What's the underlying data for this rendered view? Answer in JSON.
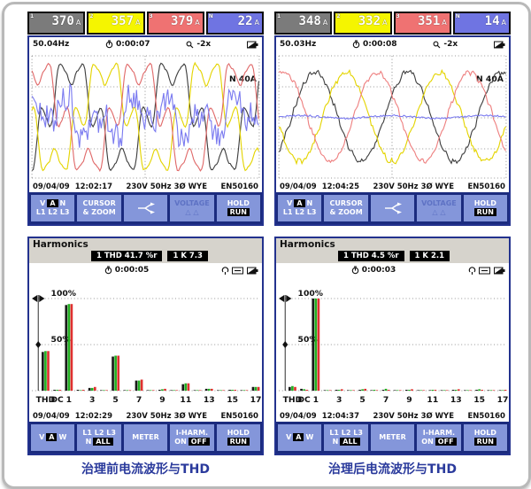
{
  "captions": {
    "left": "治理前电流波形与THD",
    "right": "治理后电流波形与THD"
  },
  "scope1": {
    "readings": [
      {
        "marker": "1",
        "value": "370",
        "unit": "A"
      },
      {
        "marker": "2",
        "value": "357",
        "unit": "A"
      },
      {
        "marker": "3",
        "value": "379",
        "unit": "A"
      },
      {
        "marker": "N",
        "value": "22",
        "unit": "A"
      }
    ],
    "freq": "50.04Hz",
    "elapsed": "0:00:07",
    "zoom": "-2x",
    "range_label": "N  40A",
    "date": "09/04/09",
    "time": "12:02:17",
    "volt_freq": "230V 50Hz 3Ø WYE",
    "standard": "EN50160"
  },
  "scope2": {
    "readings": [
      {
        "marker": "1",
        "value": "348",
        "unit": "A"
      },
      {
        "marker": "2",
        "value": "332",
        "unit": "A"
      },
      {
        "marker": "3",
        "value": "351",
        "unit": "A"
      },
      {
        "marker": "N",
        "value": "14",
        "unit": "A"
      }
    ],
    "freq": "50.03Hz",
    "elapsed": "0:00:08",
    "zoom": "-2x",
    "range_label": "N  40A",
    "date": "09/04/09",
    "time": "12:04:25",
    "volt_freq": "230V 50Hz 3Ø WYE",
    "standard": "EN50160"
  },
  "harm1": {
    "title": "Harmonics",
    "thd_label": "1 THD 41.7 %r",
    "k_label": "1 K      7.3",
    "elapsed": "0:00:05",
    "date": "09/04/09",
    "time": "12:02:29",
    "volt_freq": "230V 50Hz 3Ø WYE",
    "standard": "EN50160"
  },
  "harm2": {
    "title": "Harmonics",
    "thd_label": "1 THD  4.5 %r",
    "k_label": "1 K      2.1",
    "elapsed": "0:00:03",
    "date": "09/04/09",
    "time": "12:04:37",
    "volt_freq": "230V 50Hz 3Ø WYE",
    "standard": "EN50160"
  },
  "scope_keys": {
    "f1": {
      "t1": "V",
      "t2": "A",
      "t3": "N",
      "line2": "L1 L2 L3"
    },
    "f2": {
      "l1": "CURSOR",
      "l2": "& ZOOM"
    },
    "f4": {
      "l1": "VOLTAGE",
      "l2": "△ △"
    },
    "f5": {
      "l1": "HOLD",
      "l2": "RUN"
    }
  },
  "harm_keys": {
    "f1": {
      "t1": "V",
      "t2": "A",
      "t3": "W"
    },
    "f2": {
      "l1": "L1 L2 L3",
      "t1": "N",
      "t2": "ALL"
    },
    "f3": {
      "l1": "METER"
    },
    "f4": {
      "l1": "I-HARM.",
      "t1": "ON",
      "t2": "OFF"
    },
    "f5": {
      "l1": "HOLD",
      "l2": "RUN"
    }
  },
  "chart_data": [
    {
      "id": "wave1",
      "type": "line",
      "title": "current waveforms before treatment",
      "cycles": 2.3,
      "grid": "dotted",
      "range_per_div": "N 40A",
      "series": [
        {
          "name": "L1",
          "color": "#3f3f3f",
          "amp": 1.0,
          "phase": -60,
          "harmonics": {
            "5": -0.38,
            "7": -0.11,
            "11": 0.06
          },
          "noise": 0.02
        },
        {
          "name": "L2",
          "color": "#e4d400",
          "amp": 1.0,
          "phase": 180,
          "harmonics": {
            "5": -0.38,
            "7": -0.11,
            "11": 0.06
          },
          "noise": 0.02
        },
        {
          "name": "L3",
          "color": "#e06a6a",
          "amp": 1.0,
          "phase": 60,
          "harmonics": {
            "5": -0.38,
            "7": -0.11,
            "11": 0.06
          },
          "noise": 0.02
        },
        {
          "name": "N",
          "color": "#7b7bf0",
          "amp": 0.55,
          "phase": 20,
          "harmonics": {
            "1": 0.4,
            "3": 0.6,
            "5": 0.2,
            "9": 0.2
          },
          "noise": 0.45
        }
      ]
    },
    {
      "id": "wave2",
      "type": "line",
      "title": "current waveforms after treatment",
      "cycles": 2.5,
      "grid": "dotted",
      "range_per_div": "N 40A",
      "series": [
        {
          "name": "L1",
          "color": "#3f3f3f",
          "amp": 0.95,
          "phase": -60,
          "harmonics": {
            "11": 0.03
          },
          "noise": 0.05
        },
        {
          "name": "L2",
          "color": "#e4d400",
          "amp": 0.95,
          "phase": 180,
          "harmonics": {
            "11": 0.03
          },
          "noise": 0.05
        },
        {
          "name": "L3",
          "color": "#ee8080",
          "amp": 0.95,
          "phase": 60,
          "harmonics": {
            "11": 0.03
          },
          "noise": 0.05
        },
        {
          "name": "N",
          "color": "#7b7bf0",
          "amp": 0.03,
          "phase": 0,
          "harmonics": {},
          "noise": 0.6
        }
      ]
    },
    {
      "id": "harmbars1",
      "type": "bar",
      "title": "harmonic spectrum before treatment",
      "ylabels": [
        "100%",
        "50%"
      ],
      "ylim": [
        0,
        105
      ],
      "categories": [
        "THD",
        "DC",
        "1",
        "2",
        "3",
        "4",
        "5",
        "6",
        "7",
        "8",
        "9",
        "10",
        "11",
        "12",
        "13",
        "14",
        "15",
        "16",
        "17"
      ],
      "series": [
        {
          "name": "L1",
          "color": "#1a1a1a",
          "values": [
            42,
            1,
            93,
            1,
            3,
            0.5,
            37,
            0.5,
            11,
            0.5,
            1,
            0.5,
            7,
            0.5,
            2,
            0.5,
            1,
            0.5,
            4
          ]
        },
        {
          "name": "L2",
          "color": "#22b022",
          "values": [
            43,
            1,
            94,
            0.5,
            3,
            0.5,
            38,
            0.5,
            11,
            0.5,
            1.5,
            0.5,
            8,
            0.5,
            2,
            0.5,
            1,
            0.5,
            4
          ]
        },
        {
          "name": "L3",
          "color": "#e03030",
          "values": [
            43,
            1,
            94,
            1,
            4,
            0.5,
            38,
            0.5,
            12,
            0.5,
            2,
            0.5,
            8,
            0.5,
            2,
            0.5,
            1,
            0.5,
            4
          ]
        }
      ]
    },
    {
      "id": "harmbars2",
      "type": "bar",
      "title": "harmonic spectrum after treatment",
      "ylabels": [
        "100%",
        "50%"
      ],
      "ylim": [
        0,
        105
      ],
      "categories": [
        "THD",
        "DC",
        "1",
        "2",
        "3",
        "4",
        "5",
        "6",
        "7",
        "8",
        "9",
        "10",
        "11",
        "12",
        "13",
        "14",
        "15",
        "16",
        "17"
      ],
      "series": [
        {
          "name": "L1",
          "color": "#1a1a1a",
          "values": [
            4,
            2,
            100,
            0.5,
            1,
            0.5,
            1,
            0.5,
            1,
            0.5,
            1,
            0.5,
            0.5,
            0.5,
            1,
            0.5,
            1,
            0.5,
            0.5
          ]
        },
        {
          "name": "L2",
          "color": "#22b022",
          "values": [
            5,
            1.5,
            100,
            0.5,
            1,
            0.5,
            1.5,
            1,
            2,
            0.5,
            1,
            0.5,
            1,
            0.5,
            1,
            0.5,
            1.5,
            0.5,
            0.5
          ]
        },
        {
          "name": "L3",
          "color": "#e03030",
          "values": [
            4,
            1,
            100,
            0.5,
            1.5,
            0.5,
            2,
            0.5,
            1,
            0.5,
            1.5,
            0.5,
            1,
            0.5,
            1.5,
            0.5,
            1,
            0.5,
            1
          ]
        }
      ]
    }
  ]
}
